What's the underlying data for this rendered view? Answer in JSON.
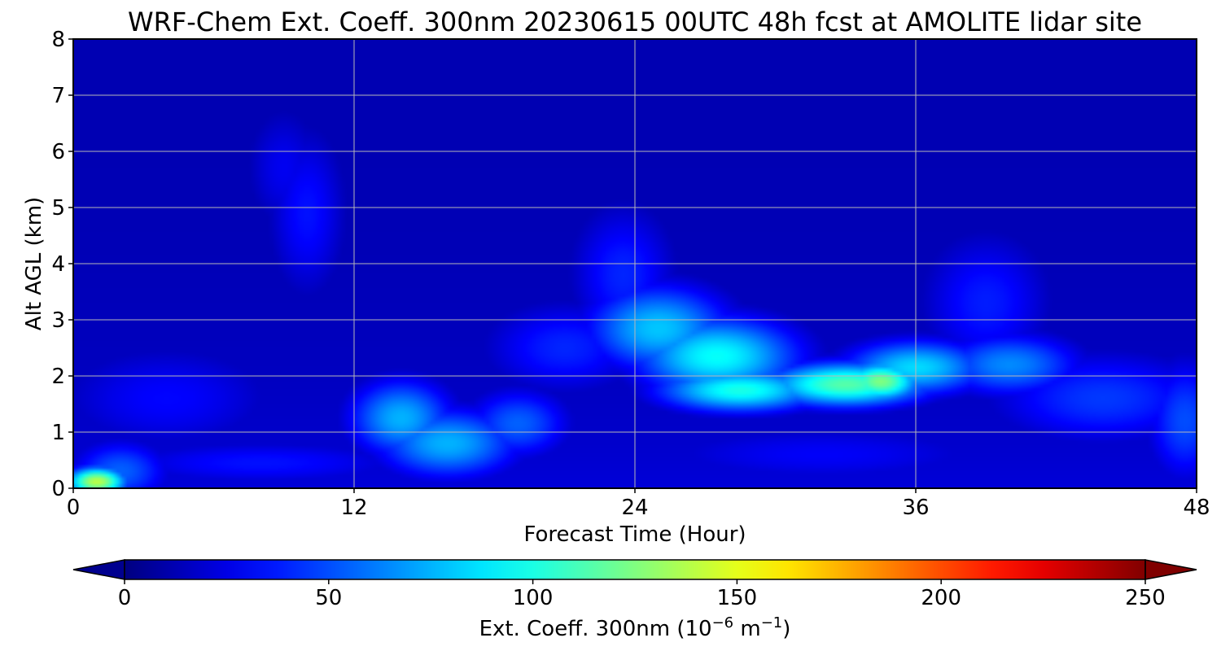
{
  "chart_data": {
    "type": "heatmap",
    "title": "WRF-Chem Ext. Coeff. 300nm  20230615 00UTC 48h fcst at AMOLITE lidar site",
    "xlabel": "Forecast Time (Hour)",
    "ylabel": "Alt AGL (km)",
    "xlim": [
      0,
      48
    ],
    "ylim": [
      0,
      8
    ],
    "x_ticks": [
      0,
      12,
      24,
      36,
      48
    ],
    "y_ticks": [
      0,
      1,
      2,
      3,
      4,
      5,
      6,
      7,
      8
    ],
    "grid": true,
    "colormap": "jet",
    "colorbar": {
      "label_main": "Ext. Coeff. 300nm  (10",
      "label_exp1": "−6",
      "label_mid": " m",
      "label_exp2": "−1",
      "label_end": ")",
      "range": [
        0,
        250
      ],
      "ticks": [
        0,
        50,
        100,
        150,
        200,
        250
      ],
      "extend": "both",
      "orientation": "horizontal"
    },
    "features": [
      {
        "x": 1,
        "y": 0.12,
        "value": 140,
        "sx": 0.9,
        "sy": 0.18
      },
      {
        "x": 2,
        "y": 0.3,
        "value": 55,
        "sx": 1.5,
        "sy": 0.4
      },
      {
        "x": 8,
        "y": 0.45,
        "value": 35,
        "sx": 5,
        "sy": 0.3
      },
      {
        "x": 4,
        "y": 1.6,
        "value": 32,
        "sx": 3.5,
        "sy": 0.7
      },
      {
        "x": 14,
        "y": 1.25,
        "value": 75,
        "sx": 1.6,
        "sy": 0.5
      },
      {
        "x": 16,
        "y": 0.8,
        "value": 75,
        "sx": 2.2,
        "sy": 0.45
      },
      {
        "x": 19,
        "y": 1.15,
        "value": 55,
        "sx": 1.6,
        "sy": 0.45
      },
      {
        "x": 21,
        "y": 2.5,
        "value": 40,
        "sx": 2.5,
        "sy": 0.6
      },
      {
        "x": 23.5,
        "y": 3.8,
        "value": 40,
        "sx": 1.6,
        "sy": 0.9
      },
      {
        "x": 25,
        "y": 2.85,
        "value": 80,
        "sx": 2.2,
        "sy": 0.55
      },
      {
        "x": 27.5,
        "y": 2.35,
        "value": 95,
        "sx": 2.5,
        "sy": 0.5
      },
      {
        "x": 28.5,
        "y": 1.75,
        "value": 100,
        "sx": 2.5,
        "sy": 0.28
      },
      {
        "x": 33,
        "y": 1.85,
        "value": 115,
        "sx": 2.5,
        "sy": 0.28
      },
      {
        "x": 34.5,
        "y": 1.9,
        "value": 125,
        "sx": 1.2,
        "sy": 0.25
      },
      {
        "x": 36,
        "y": 2.15,
        "value": 85,
        "sx": 2.2,
        "sy": 0.35
      },
      {
        "x": 40,
        "y": 2.2,
        "value": 65,
        "sx": 2.2,
        "sy": 0.4
      },
      {
        "x": 39,
        "y": 3.3,
        "value": 38,
        "sx": 2,
        "sy": 0.9
      },
      {
        "x": 44,
        "y": 1.6,
        "value": 45,
        "sx": 3.5,
        "sy": 0.6
      },
      {
        "x": 47.5,
        "y": 1.2,
        "value": 50,
        "sx": 1.2,
        "sy": 0.8
      },
      {
        "x": 10,
        "y": 4.9,
        "value": 35,
        "sx": 1.2,
        "sy": 1.1
      },
      {
        "x": 9,
        "y": 5.7,
        "value": 28,
        "sx": 1.2,
        "sy": 0.8
      },
      {
        "x": 32,
        "y": 0.6,
        "value": 30,
        "sx": 6,
        "sy": 0.4
      }
    ]
  }
}
